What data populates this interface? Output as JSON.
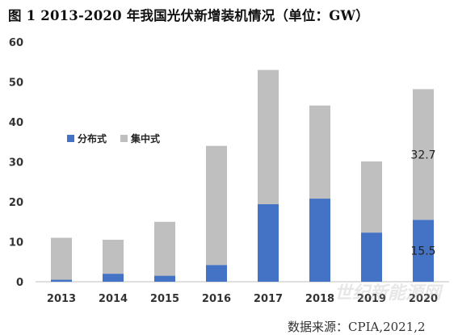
{
  "title": "图 1 2013-2020 年我国光伏新增装机情况（单位：GW）",
  "source_note": "数据来源：CPIA,2021,2",
  "watermark": "世纪新能源网",
  "chart_data": {
    "type": "bar",
    "stacked": true,
    "categories": [
      "2013",
      "2014",
      "2015",
      "2016",
      "2017",
      "2018",
      "2019",
      "2020"
    ],
    "series": [
      {
        "name": "分布式",
        "color": "#4472C4",
        "values": [
          0.5,
          2.0,
          1.5,
          4.2,
          19.4,
          20.8,
          12.3,
          15.5
        ],
        "data_labels": [
          null,
          null,
          null,
          null,
          null,
          null,
          null,
          "15.5"
        ]
      },
      {
        "name": "集中式",
        "color": "#BFBFBF",
        "values": [
          10.5,
          8.5,
          13.5,
          29.8,
          33.6,
          23.3,
          17.8,
          32.7
        ],
        "data_labels": [
          null,
          null,
          null,
          null,
          null,
          null,
          null,
          "32.7"
        ]
      }
    ],
    "ylim": [
      0,
      60
    ],
    "yticks": [
      "0",
      "10",
      "20",
      "30",
      "40",
      "50",
      "60"
    ],
    "xlabel": "",
    "ylabel": "",
    "grid": false,
    "legend_position": "left, inside plot"
  }
}
